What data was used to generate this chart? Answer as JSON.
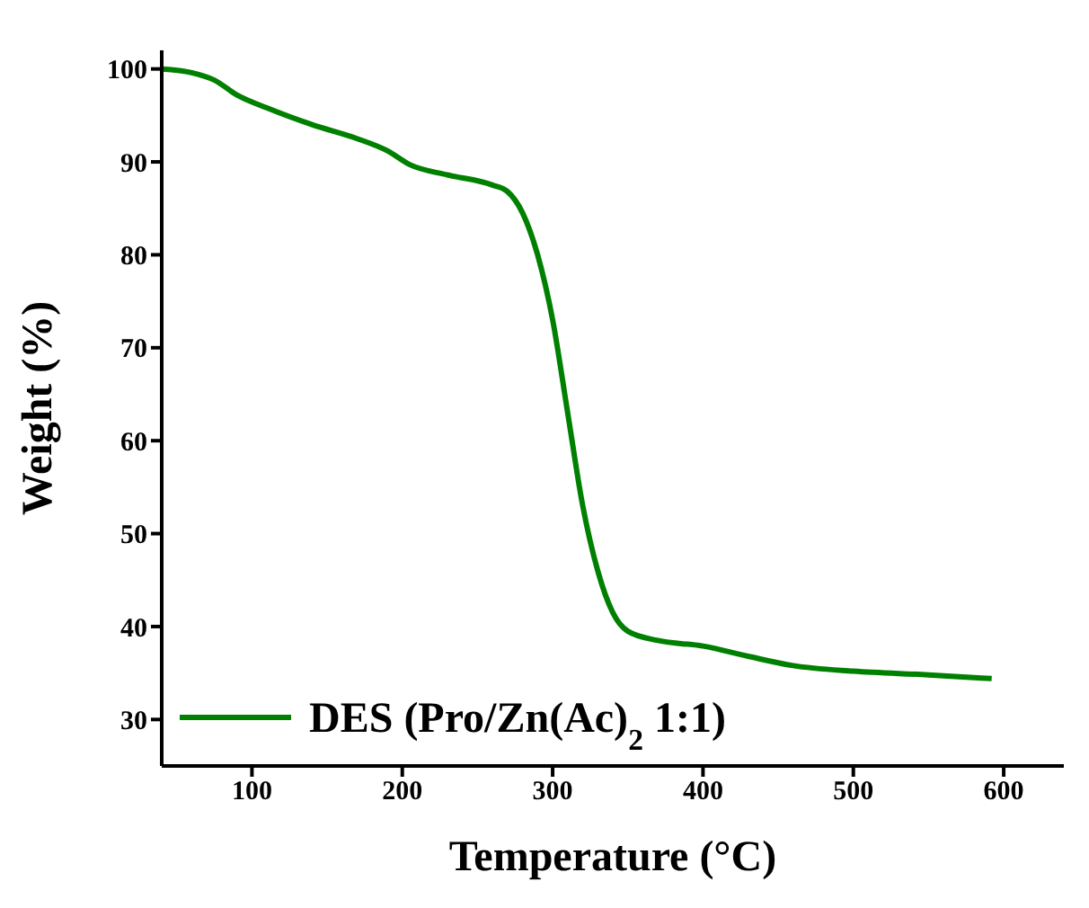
{
  "chart_data": {
    "type": "line",
    "xlabel": "Temperature (°C)",
    "ylabel": "Weight (%)",
    "xlim": [
      40,
      640
    ],
    "xticks": [
      100,
      200,
      300,
      400,
      500,
      600
    ],
    "ylim": [
      25,
      102
    ],
    "yticks": [
      30,
      40,
      50,
      60,
      70,
      80,
      90,
      100
    ],
    "legend": "bottom left",
    "marker": "none",
    "line_style": "solid",
    "grid": false,
    "series": [
      {
        "name": "DES (Pro/Zn(Ac)$_{2}$ 1:1)",
        "color": "#008000",
        "x": [
          40,
          60,
          75,
          90,
          110,
          140,
          170,
          190,
          205,
          230,
          260,
          270,
          280,
          290,
          300,
          310,
          320,
          330,
          340,
          350,
          370,
          400,
          430,
          460,
          500,
          550,
          592
        ],
        "values": [
          100,
          99.6,
          98.8,
          97.2,
          95.8,
          94,
          92.5,
          91.2,
          89.7,
          88.6,
          87.5,
          86.8,
          84.5,
          80,
          73,
          63,
          53,
          46,
          41.5,
          39.5,
          38.5,
          37.9,
          36.8,
          35.8,
          35.2,
          34.8,
          34.4
        ]
      }
    ]
  }
}
